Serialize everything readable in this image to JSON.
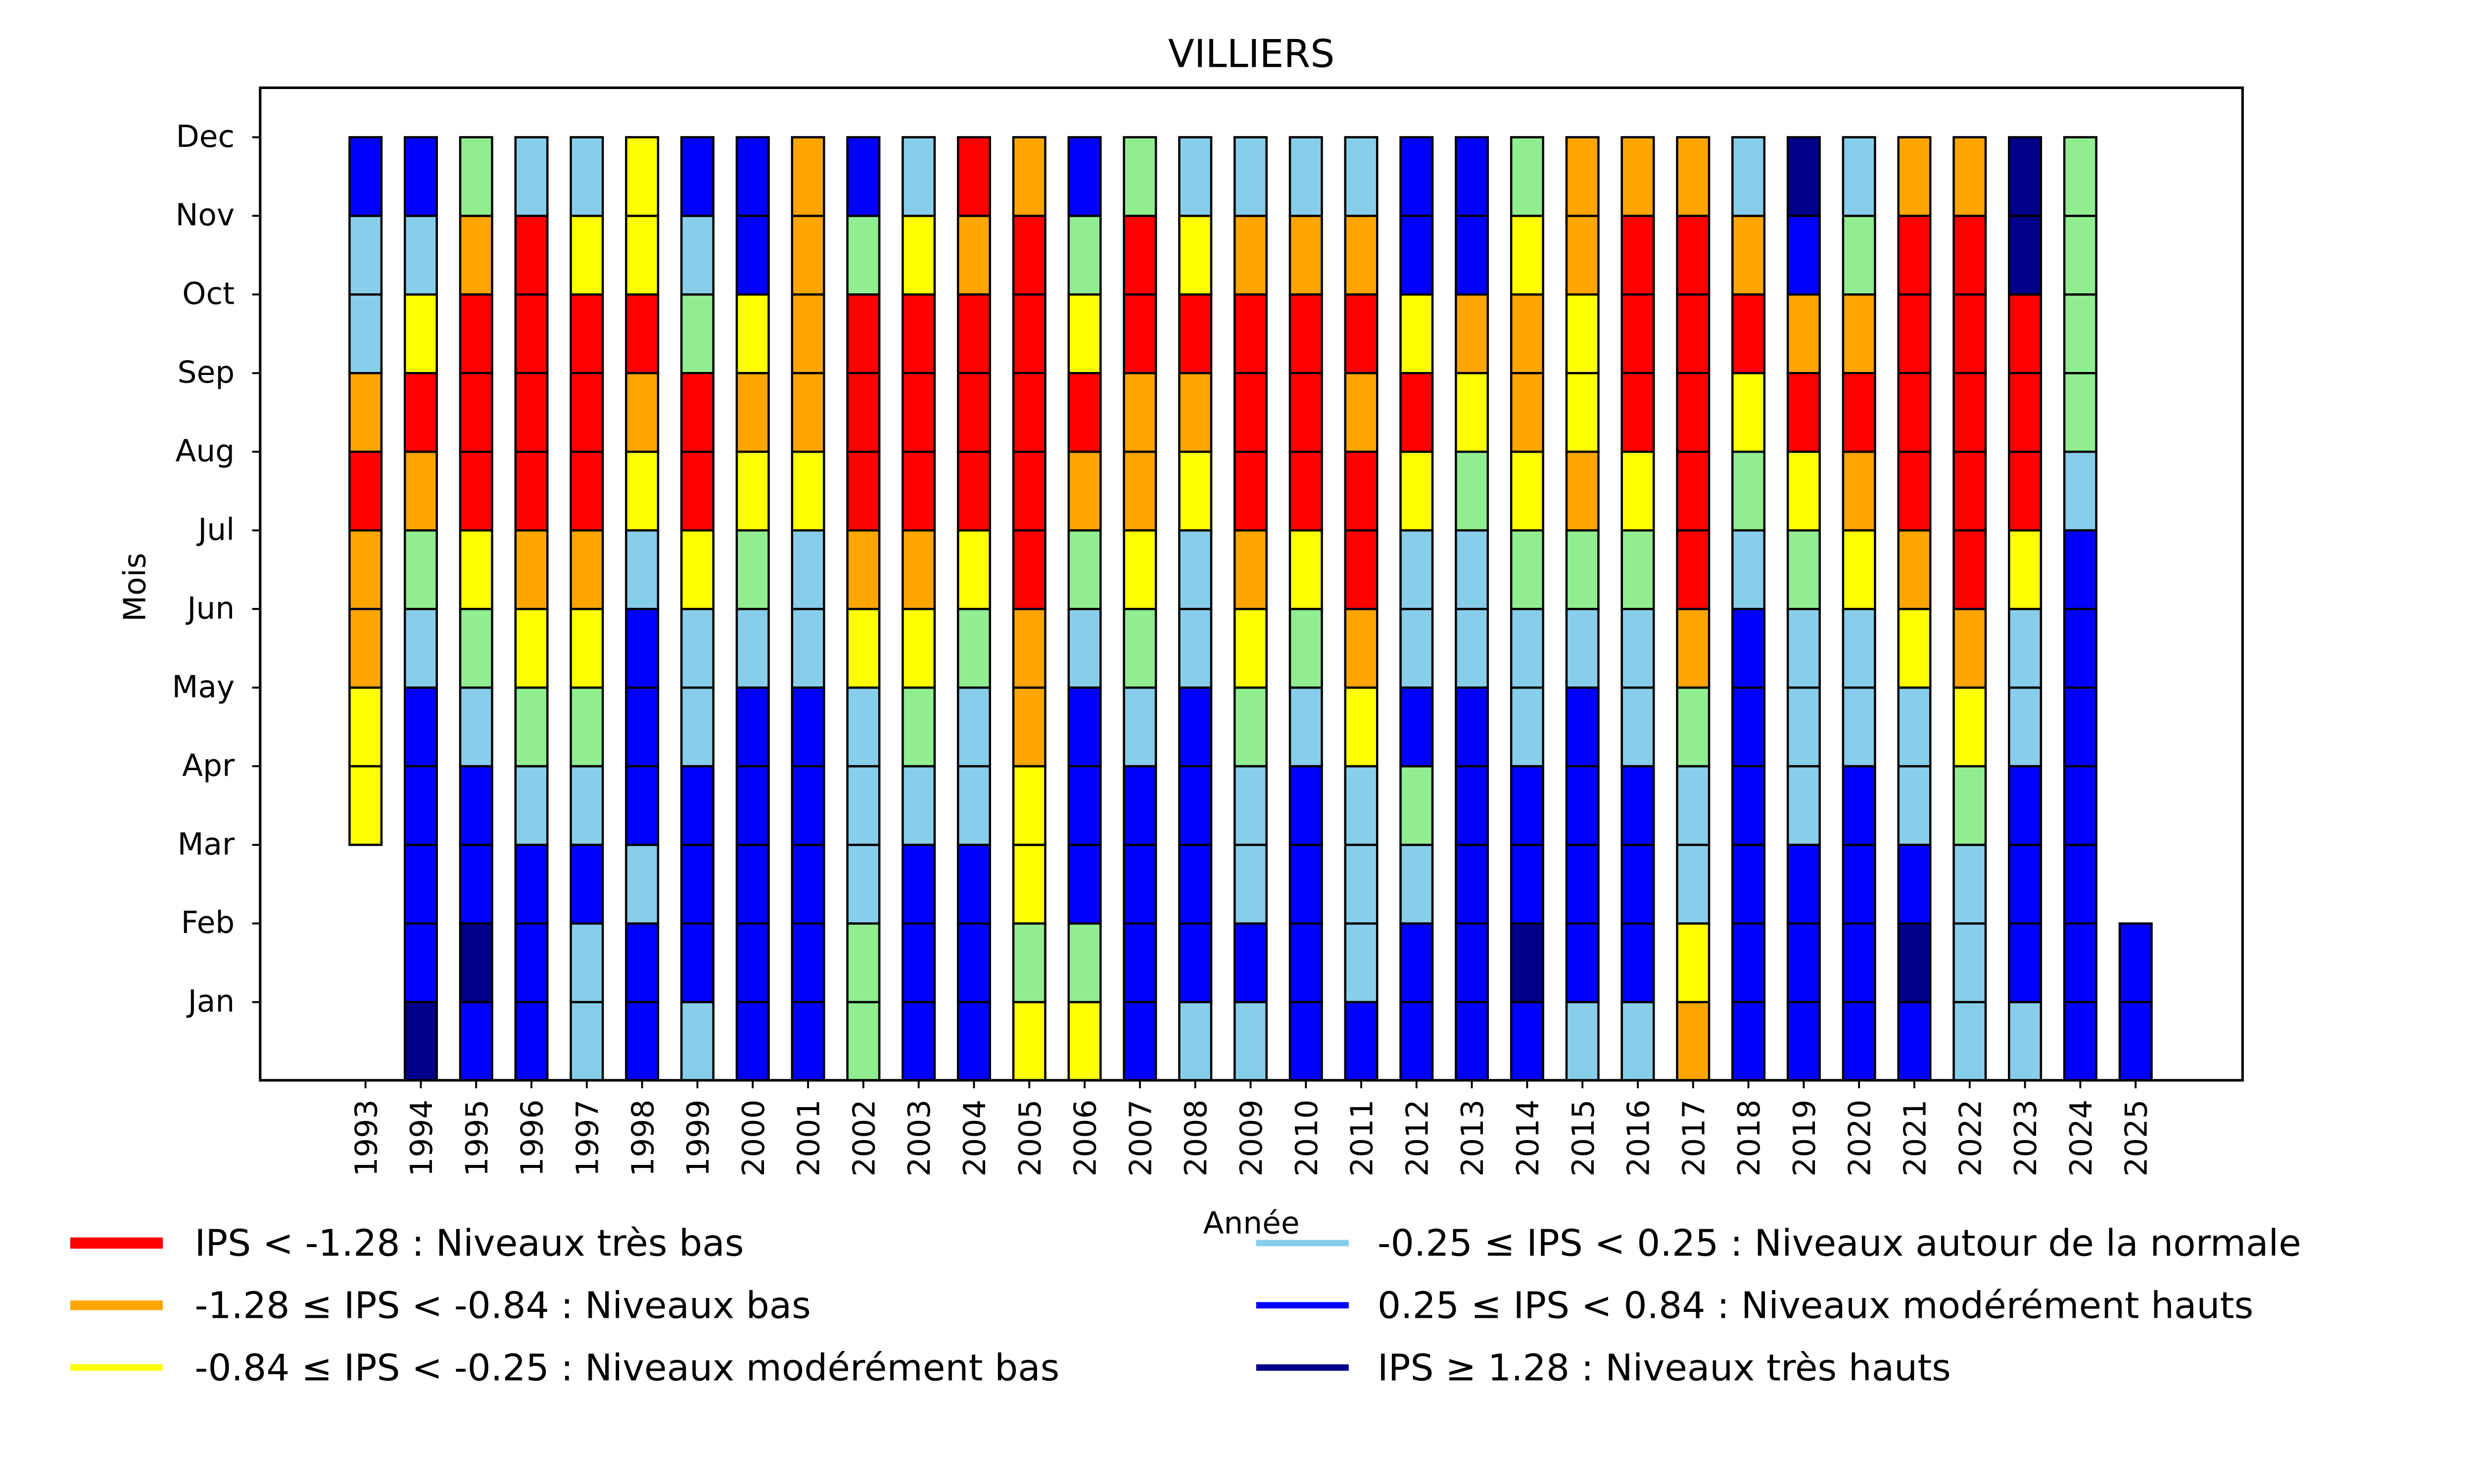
{
  "chart_data": {
    "type": "heatmap",
    "title": "VILLIERS",
    "xlabel": "Année",
    "ylabel": "Mois",
    "months": [
      "Jan",
      "Feb",
      "Mar",
      "Apr",
      "May",
      "Jun",
      "Jul",
      "Aug",
      "Sep",
      "Oct",
      "Nov",
      "Dec"
    ],
    "years": [
      "1993",
      "1994",
      "1995",
      "1996",
      "1997",
      "1998",
      "1999",
      "2000",
      "2001",
      "2002",
      "2003",
      "2004",
      "2005",
      "2006",
      "2007",
      "2008",
      "2009",
      "2010",
      "2011",
      "2012",
      "2013",
      "2014",
      "2015",
      "2016",
      "2017",
      "2018",
      "2019",
      "2020",
      "2021",
      "2022",
      "2023",
      "2024",
      "2025"
    ],
    "categories": {
      "R": {
        "color": "#ff0000",
        "label": "IPS < -1.28 : Niveaux très bas"
      },
      "O": {
        "color": "#ffa500",
        "label": "-1.28 ≤ IPS < -0.84 : Niveaux bas"
      },
      "Y": {
        "color": "#ffff00",
        "label": "-0.84 ≤ IPS < -0.25 : Niveaux modérément bas"
      },
      "L": {
        "color": "#87ceeb",
        "label": "-0.25 ≤ IPS < 0.25 : Niveaux autour de la normale"
      },
      "G": {
        "color": "#90ee90",
        "label": ""
      },
      "B": {
        "color": "#0000ff",
        "label": "0.25 ≤ IPS < 0.84 : Niveaux modérément hauts"
      },
      "N": {
        "color": "#00008b",
        "label": "IPS ≥ 1.28 : Niveaux très hauts"
      }
    },
    "legend": {
      "placement": "below",
      "columns": [
        [
          "R",
          "O",
          "Y"
        ],
        [
          "L",
          "B",
          "N"
        ]
      ]
    },
    "cells_jan_to_dec": {
      "1993": [
        null,
        null,
        null,
        "Y",
        "Y",
        "O",
        "O",
        "R",
        "O",
        "L",
        "L",
        "B"
      ],
      "1994": [
        "N",
        "B",
        "B",
        "B",
        "B",
        "L",
        "G",
        "O",
        "R",
        "Y",
        "L",
        "B"
      ],
      "1995": [
        "B",
        "N",
        "B",
        "B",
        "L",
        "G",
        "Y",
        "R",
        "R",
        "R",
        "O",
        "G"
      ],
      "1996": [
        "B",
        "B",
        "B",
        "L",
        "G",
        "Y",
        "O",
        "R",
        "R",
        "R",
        "R",
        "L"
      ],
      "1997": [
        "L",
        "L",
        "B",
        "L",
        "G",
        "Y",
        "O",
        "R",
        "R",
        "R",
        "Y",
        "L"
      ],
      "1998": [
        "B",
        "B",
        "L",
        "B",
        "B",
        "B",
        "L",
        "Y",
        "O",
        "R",
        "Y",
        "Y"
      ],
      "1999": [
        "L",
        "B",
        "B",
        "B",
        "L",
        "L",
        "Y",
        "R",
        "R",
        "G",
        "L",
        "B"
      ],
      "2000": [
        "B",
        "B",
        "B",
        "B",
        "B",
        "L",
        "G",
        "Y",
        "O",
        "Y",
        "B",
        "B"
      ],
      "2001": [
        "B",
        "B",
        "B",
        "B",
        "B",
        "L",
        "L",
        "Y",
        "O",
        "O",
        "O",
        "O"
      ],
      "2002": [
        "G",
        "G",
        "L",
        "L",
        "L",
        "Y",
        "O",
        "R",
        "R",
        "R",
        "G",
        "B"
      ],
      "2003": [
        "B",
        "B",
        "B",
        "L",
        "G",
        "Y",
        "O",
        "R",
        "R",
        "R",
        "Y",
        "L"
      ],
      "2004": [
        "B",
        "B",
        "B",
        "L",
        "L",
        "G",
        "Y",
        "R",
        "R",
        "R",
        "O",
        "R"
      ],
      "2005": [
        "Y",
        "G",
        "Y",
        "Y",
        "O",
        "O",
        "R",
        "R",
        "R",
        "R",
        "R",
        "O"
      ],
      "2006": [
        "Y",
        "G",
        "B",
        "B",
        "B",
        "L",
        "G",
        "O",
        "R",
        "Y",
        "G",
        "B"
      ],
      "2007": [
        "B",
        "B",
        "B",
        "B",
        "L",
        "G",
        "Y",
        "O",
        "O",
        "R",
        "R",
        "G"
      ],
      "2008": [
        "L",
        "B",
        "B",
        "B",
        "B",
        "L",
        "L",
        "Y",
        "O",
        "R",
        "Y",
        "L"
      ],
      "2009": [
        "L",
        "B",
        "L",
        "L",
        "G",
        "Y",
        "O",
        "R",
        "R",
        "R",
        "O",
        "L"
      ],
      "2010": [
        "B",
        "B",
        "B",
        "B",
        "L",
        "G",
        "Y",
        "R",
        "R",
        "R",
        "O",
        "L"
      ],
      "2011": [
        "B",
        "L",
        "L",
        "L",
        "Y",
        "O",
        "R",
        "R",
        "O",
        "R",
        "O",
        "L"
      ],
      "2012": [
        "B",
        "B",
        "L",
        "G",
        "B",
        "L",
        "L",
        "Y",
        "R",
        "Y",
        "B",
        "B"
      ],
      "2013": [
        "B",
        "B",
        "B",
        "B",
        "B",
        "L",
        "L",
        "G",
        "Y",
        "O",
        "B",
        "B"
      ],
      "2014": [
        "B",
        "N",
        "B",
        "B",
        "L",
        "L",
        "G",
        "Y",
        "O",
        "O",
        "Y",
        "G"
      ],
      "2015": [
        "L",
        "B",
        "B",
        "B",
        "B",
        "L",
        "G",
        "O",
        "Y",
        "Y",
        "O",
        "O"
      ],
      "2016": [
        "L",
        "B",
        "B",
        "B",
        "L",
        "L",
        "G",
        "Y",
        "R",
        "R",
        "R",
        "O"
      ],
      "2017": [
        "O",
        "Y",
        "L",
        "L",
        "G",
        "O",
        "R",
        "R",
        "R",
        "R",
        "R",
        "O"
      ],
      "2018": [
        "B",
        "B",
        "B",
        "B",
        "B",
        "B",
        "L",
        "G",
        "Y",
        "R",
        "O",
        "L"
      ],
      "2019": [
        "B",
        "B",
        "B",
        "L",
        "L",
        "L",
        "G",
        "Y",
        "R",
        "O",
        "B",
        "N"
      ],
      "2020": [
        "B",
        "B",
        "B",
        "B",
        "L",
        "L",
        "Y",
        "O",
        "R",
        "O",
        "G",
        "L"
      ],
      "2021": [
        "B",
        "N",
        "B",
        "L",
        "L",
        "Y",
        "O",
        "R",
        "R",
        "R",
        "R",
        "O"
      ],
      "2022": [
        "L",
        "L",
        "L",
        "G",
        "Y",
        "O",
        "R",
        "R",
        "R",
        "R",
        "R",
        "O"
      ],
      "2023": [
        "L",
        "B",
        "B",
        "B",
        "L",
        "L",
        "Y",
        "R",
        "R",
        "R",
        "N",
        "N"
      ],
      "2024": [
        "B",
        "B",
        "B",
        "B",
        "B",
        "B",
        "B",
        "L",
        "G",
        "G",
        "G",
        "G"
      ],
      "2025": [
        "B",
        "B",
        null,
        null,
        null,
        null,
        null,
        null,
        null,
        null,
        null,
        null
      ]
    },
    "grid": false
  }
}
